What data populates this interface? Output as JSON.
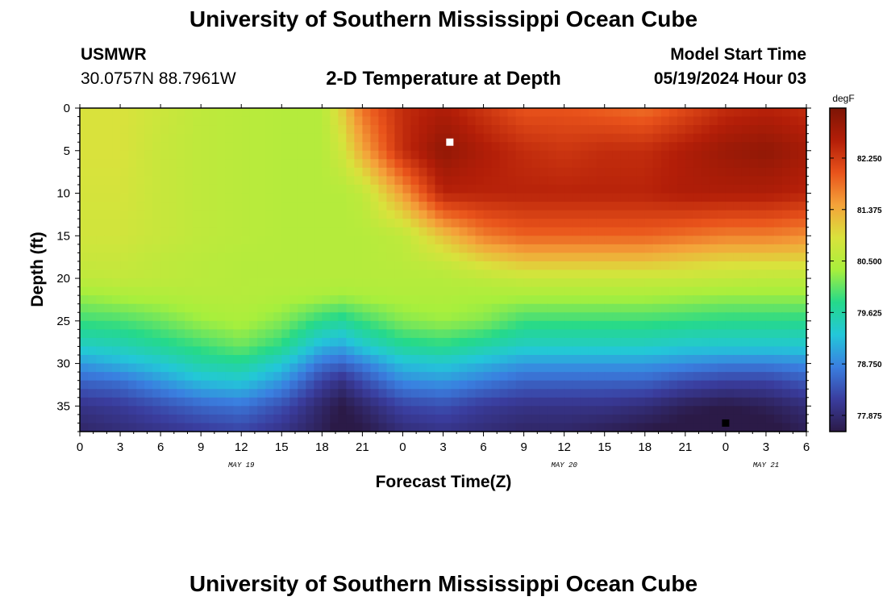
{
  "header": {
    "title": "University of Southern Mississippi Ocean Cube",
    "station_name": "USMWR",
    "station_coords": "30.0757N  88.7961W",
    "plot_title": "2-D Temperature at Depth",
    "model_start_label": "Model Start Time",
    "model_start_value": "05/19/2024 Hour 03"
  },
  "footer": {
    "title": "University of Southern Mississippi Ocean Cube"
  },
  "chart_data": {
    "type": "heatmap",
    "title": "2-D Temperature at Depth",
    "xlabel": "Forecast Time(Z)",
    "ylabel": "Depth (ft)",
    "x_ticks": [
      "0",
      "3",
      "6",
      "9",
      "12",
      "15",
      "18",
      "21",
      "0",
      "3",
      "6",
      "9",
      "12",
      "15",
      "18",
      "21",
      "0",
      "3",
      "6"
    ],
    "x_hour_range": [
      0,
      54
    ],
    "date_labels": [
      {
        "text": "MAY 19",
        "hour": 12
      },
      {
        "text": "MAY 20",
        "hour": 36
      },
      {
        "text": "MAY 21",
        "hour": 51
      }
    ],
    "y_ticks": [
      0,
      5,
      10,
      15,
      20,
      25,
      30,
      35
    ],
    "ylim": [
      0,
      38
    ],
    "y_inverted": true,
    "colorbar": {
      "unit": "degF",
      "ticks": [
        "82.250",
        "81.375",
        "80.500",
        "79.625",
        "78.750",
        "77.875"
      ],
      "tick_values": [
        82.25,
        81.375,
        80.5,
        79.625,
        78.75,
        77.875
      ],
      "range": [
        77.6,
        83.1
      ],
      "colors": [
        "#2b1a47",
        "#3a3d9e",
        "#3a7fe0",
        "#23c7d9",
        "#25d98a",
        "#a8ef3c",
        "#d9e23c",
        "#f4a33a",
        "#e9531b",
        "#b31e08",
        "#7d1505"
      ]
    },
    "markers": [
      {
        "hour": 27.5,
        "depth": 4,
        "color": "#ffffff"
      },
      {
        "hour": 48,
        "depth": 37,
        "color": "#000000"
      }
    ],
    "hours": [
      0,
      3,
      6,
      9,
      12,
      15,
      18,
      19.5,
      21,
      24,
      27,
      30,
      33,
      36,
      39,
      42,
      45,
      48,
      51,
      54
    ],
    "depths": [
      0,
      5,
      10,
      15,
      18,
      20,
      22,
      25,
      28,
      30,
      32,
      35,
      38
    ],
    "temps": [
      [
        80.9,
        80.9,
        80.75,
        80.6,
        80.55,
        80.5,
        80.5,
        81.1,
        81.8,
        82.4,
        82.6,
        82.3,
        82.0,
        82.0,
        81.9,
        81.8,
        82.1,
        82.4,
        82.5,
        82.4
      ],
      [
        80.9,
        80.9,
        80.7,
        80.6,
        80.55,
        80.5,
        80.5,
        80.8,
        81.4,
        82.4,
        82.9,
        82.6,
        82.4,
        82.3,
        82.4,
        82.4,
        82.6,
        82.8,
        82.9,
        82.7
      ],
      [
        80.85,
        80.85,
        80.7,
        80.6,
        80.55,
        80.5,
        80.5,
        80.5,
        80.6,
        81.5,
        82.5,
        82.5,
        82.5,
        82.5,
        82.5,
        82.5,
        82.6,
        82.6,
        82.6,
        82.5
      ],
      [
        80.8,
        80.8,
        80.7,
        80.6,
        80.55,
        80.5,
        80.5,
        80.5,
        80.5,
        80.6,
        81.2,
        81.7,
        81.9,
        81.9,
        81.9,
        81.9,
        81.8,
        81.7,
        81.7,
        81.6
      ],
      [
        80.7,
        80.7,
        80.6,
        80.55,
        80.5,
        80.5,
        80.5,
        80.5,
        80.5,
        80.55,
        80.7,
        81.0,
        81.2,
        81.2,
        81.2,
        81.2,
        81.1,
        81.0,
        81.0,
        81.0
      ],
      [
        80.6,
        80.65,
        80.6,
        80.55,
        80.5,
        80.5,
        80.5,
        80.5,
        80.5,
        80.5,
        80.5,
        80.6,
        80.7,
        80.7,
        80.7,
        80.7,
        80.7,
        80.65,
        80.6,
        80.6
      ],
      [
        80.3,
        80.4,
        80.45,
        80.5,
        80.5,
        80.45,
        80.4,
        80.35,
        80.4,
        80.45,
        80.45,
        80.4,
        80.4,
        80.4,
        80.4,
        80.4,
        80.35,
        80.3,
        80.3,
        80.3
      ],
      [
        79.9,
        79.95,
        80.1,
        80.3,
        80.4,
        80.2,
        79.8,
        79.7,
        79.9,
        80.2,
        80.3,
        80.2,
        79.9,
        79.9,
        79.9,
        79.9,
        79.85,
        79.8,
        79.8,
        79.8
      ],
      [
        79.4,
        79.5,
        79.7,
        79.9,
        80.1,
        79.8,
        79.1,
        79.0,
        79.3,
        79.7,
        79.8,
        79.6,
        79.4,
        79.4,
        79.4,
        79.4,
        79.3,
        79.3,
        79.3,
        79.3
      ],
      [
        78.9,
        79.1,
        79.3,
        79.6,
        79.7,
        79.3,
        78.6,
        78.5,
        78.7,
        79.2,
        79.3,
        79.1,
        78.9,
        78.9,
        78.9,
        78.9,
        78.8,
        78.7,
        78.7,
        78.8
      ],
      [
        78.5,
        78.6,
        78.9,
        79.2,
        79.3,
        78.9,
        78.2,
        78.0,
        78.3,
        78.8,
        78.9,
        78.7,
        78.5,
        78.5,
        78.5,
        78.5,
        78.3,
        78.2,
        78.2,
        78.4
      ],
      [
        78.0,
        78.1,
        78.3,
        78.5,
        78.6,
        78.3,
        77.8,
        77.6,
        77.8,
        78.2,
        78.3,
        78.1,
        78.0,
        78.0,
        78.0,
        77.9,
        77.7,
        77.6,
        77.7,
        77.9
      ],
      [
        77.8,
        77.9,
        78.0,
        78.1,
        78.2,
        78.0,
        77.7,
        77.5,
        77.6,
        77.9,
        78.0,
        77.9,
        77.8,
        77.8,
        77.7,
        77.6,
        77.5,
        77.4,
        77.5,
        77.7
      ]
    ]
  }
}
